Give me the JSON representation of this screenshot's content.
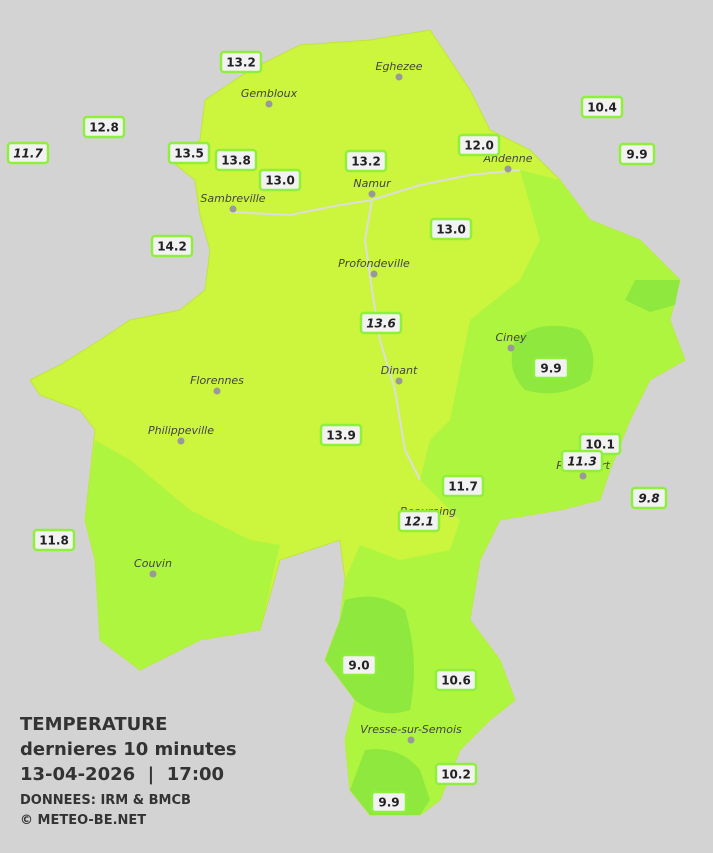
{
  "map": {
    "legend": {
      "title": "TEMPERATURE",
      "subtitle": "dernieres 10 minutes",
      "datetime": "13-04-2026  |  17:00",
      "source": "DONNEES: IRM & BMCB",
      "credit": "© METEO-BE.NET"
    },
    "cities": [
      "Eghezee",
      "Gembloux",
      "Andenne",
      "Namur",
      "Sambreville",
      "Profondeville",
      "Ciney",
      "Dinant",
      "Florennes",
      "Philippeville",
      "Rochefort",
      "Beauraing",
      "Couvin",
      "Vresse-sur-Semois"
    ],
    "stations": [
      {
        "label": "13.2",
        "italic": false
      },
      {
        "label": "12.8",
        "italic": false
      },
      {
        "label": "11.7",
        "italic": true
      },
      {
        "label": "13.5",
        "italic": false
      },
      {
        "label": "13.8",
        "italic": false
      },
      {
        "label": "13.0",
        "italic": false
      },
      {
        "label": "13.2",
        "italic": false
      },
      {
        "label": "12.0",
        "italic": false
      },
      {
        "label": "10.4",
        "italic": false
      },
      {
        "label": "9.9",
        "italic": false
      },
      {
        "label": "14.2",
        "italic": false
      },
      {
        "label": "13.0",
        "italic": false
      },
      {
        "label": "13.6",
        "italic": true
      },
      {
        "label": "9.9",
        "italic": false
      },
      {
        "label": "13.9",
        "italic": false
      },
      {
        "label": "10.1",
        "italic": false
      },
      {
        "label": "11.3",
        "italic": true
      },
      {
        "label": "9.8",
        "italic": true
      },
      {
        "label": "11.7",
        "italic": false
      },
      {
        "label": "12.1",
        "italic": true
      },
      {
        "label": "11.8",
        "italic": false
      },
      {
        "label": "9.0",
        "italic": false
      },
      {
        "label": "10.6",
        "italic": false
      },
      {
        "label": "10.2",
        "italic": false
      },
      {
        "label": "9.9",
        "italic": false
      }
    ]
  }
}
